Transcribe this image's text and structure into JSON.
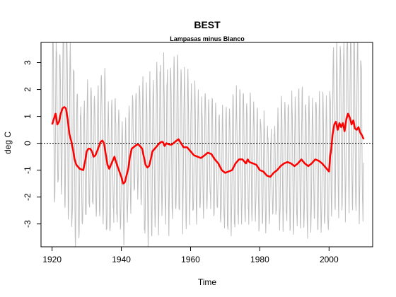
{
  "chart_data": {
    "type": "line",
    "title": "BEST",
    "subtitle": "Lampasas minus Blanco",
    "xlabel": "Time",
    "ylabel": "deg C",
    "xlim": [
      1916.8,
      2012.6
    ],
    "ylim": [
      -3.85,
      3.75
    ],
    "xticks": [
      1920,
      1940,
      1960,
      1980,
      2000
    ],
    "yticks": [
      -3,
      -2,
      -1,
      0,
      1,
      2,
      3
    ],
    "reference_line": {
      "y": 0,
      "style": "dotted",
      "color": "#000000"
    },
    "series": [
      {
        "kind": "monthly",
        "color": "#bebebe",
        "x_start": 1920.0,
        "x_step": 0.0833,
        "envelope": [
          [
            1920,
            3.4
          ],
          [
            1922,
            2.3
          ],
          [
            1924,
            3.6
          ],
          [
            1926,
            3.4
          ],
          [
            1928,
            2.2
          ],
          [
            1930,
            2.4
          ],
          [
            1932,
            2.0
          ],
          [
            1934,
            2.5
          ],
          [
            1936,
            2.6
          ],
          [
            1938,
            2.2
          ],
          [
            1940,
            2.1
          ],
          [
            1942,
            1.9
          ],
          [
            1944,
            1.6
          ],
          [
            1946,
            2.6
          ],
          [
            1948,
            2.9
          ],
          [
            1950,
            2.8
          ],
          [
            1952,
            3.0
          ],
          [
            1954,
            2.8
          ],
          [
            1956,
            2.9
          ],
          [
            1958,
            2.7
          ],
          [
            1960,
            2.4
          ],
          [
            1962,
            2.3
          ],
          [
            1964,
            2.1
          ],
          [
            1966,
            2.0
          ],
          [
            1968,
            1.9
          ],
          [
            1970,
            2.2
          ],
          [
            1972,
            2.5
          ],
          [
            1974,
            2.3
          ],
          [
            1976,
            2.4
          ],
          [
            1978,
            2.0
          ],
          [
            1980,
            2.2
          ],
          [
            1982,
            1.8
          ],
          [
            1984,
            1.5
          ],
          [
            1986,
            2.3
          ],
          [
            1988,
            2.3
          ],
          [
            1990,
            2.3
          ],
          [
            1992,
            2.4
          ],
          [
            1994,
            2.5
          ],
          [
            1996,
            2.3
          ],
          [
            1998,
            2.4
          ],
          [
            2000,
            2.5
          ],
          [
            2002,
            3.0
          ],
          [
            2004,
            3.2
          ],
          [
            2006,
            3.1
          ],
          [
            2008,
            3.3
          ],
          [
            2010,
            3.0
          ]
        ]
      },
      {
        "kind": "smoothed",
        "color": "#ff0000",
        "points": [
          [
            1920.0,
            0.7
          ],
          [
            1920.5,
            0.9
          ],
          [
            1921.0,
            1.1
          ],
          [
            1921.5,
            0.7
          ],
          [
            1922.0,
            0.8
          ],
          [
            1922.5,
            1.1
          ],
          [
            1923.0,
            1.3
          ],
          [
            1923.5,
            1.35
          ],
          [
            1924.0,
            1.3
          ],
          [
            1924.5,
            0.9
          ],
          [
            1925.0,
            0.35
          ],
          [
            1925.5,
            0.1
          ],
          [
            1926.0,
            -0.2
          ],
          [
            1926.5,
            -0.6
          ],
          [
            1927.0,
            -0.8
          ],
          [
            1928.0,
            -0.95
          ],
          [
            1929.0,
            -1.0
          ],
          [
            1929.5,
            -0.7
          ],
          [
            1930.0,
            -0.3
          ],
          [
            1930.5,
            -0.2
          ],
          [
            1931.0,
            -0.2
          ],
          [
            1931.5,
            -0.3
          ],
          [
            1932.0,
            -0.5
          ],
          [
            1932.5,
            -0.45
          ],
          [
            1933.0,
            -0.3
          ],
          [
            1934.0,
            0.05
          ],
          [
            1934.5,
            0.1
          ],
          [
            1935.0,
            0.0
          ],
          [
            1935.5,
            -0.4
          ],
          [
            1936.0,
            -0.8
          ],
          [
            1936.5,
            -0.95
          ],
          [
            1937.0,
            -0.8
          ],
          [
            1938.0,
            -0.5
          ],
          [
            1938.5,
            -0.7
          ],
          [
            1939.0,
            -0.9
          ],
          [
            1940.0,
            -1.25
          ],
          [
            1940.5,
            -1.5
          ],
          [
            1941.0,
            -1.45
          ],
          [
            1941.5,
            -1.2
          ],
          [
            1942.0,
            -0.95
          ],
          [
            1942.5,
            -0.5
          ],
          [
            1943.0,
            -0.2
          ],
          [
            1944.0,
            -0.1
          ],
          [
            1944.5,
            -0.05
          ],
          [
            1945.0,
            -0.05
          ],
          [
            1946.0,
            -0.2
          ],
          [
            1946.5,
            -0.5
          ],
          [
            1947.0,
            -0.8
          ],
          [
            1947.5,
            -0.9
          ],
          [
            1948.0,
            -0.85
          ],
          [
            1948.5,
            -0.6
          ],
          [
            1949.0,
            -0.3
          ],
          [
            1950.0,
            -0.15
          ],
          [
            1951.0,
            0.0
          ],
          [
            1951.5,
            0.05
          ],
          [
            1952.0,
            0.05
          ],
          [
            1952.5,
            -0.1
          ],
          [
            1953.0,
            0.0
          ],
          [
            1954.0,
            -0.05
          ],
          [
            1954.5,
            -0.05
          ],
          [
            1955.0,
            0.0
          ],
          [
            1956.0,
            0.1
          ],
          [
            1956.5,
            0.15
          ],
          [
            1957.0,
            0.05
          ],
          [
            1958.0,
            -0.15
          ],
          [
            1959.0,
            -0.15
          ],
          [
            1960.0,
            -0.3
          ],
          [
            1961.0,
            -0.45
          ],
          [
            1962.0,
            -0.5
          ],
          [
            1963.0,
            -0.55
          ],
          [
            1964.0,
            -0.45
          ],
          [
            1965.0,
            -0.35
          ],
          [
            1966.0,
            -0.4
          ],
          [
            1967.0,
            -0.6
          ],
          [
            1968.0,
            -0.75
          ],
          [
            1969.0,
            -1.0
          ],
          [
            1970.0,
            -1.1
          ],
          [
            1971.0,
            -1.05
          ],
          [
            1972.0,
            -1.0
          ],
          [
            1973.0,
            -0.75
          ],
          [
            1974.0,
            -0.6
          ],
          [
            1975.0,
            -0.6
          ],
          [
            1976.0,
            -0.75
          ],
          [
            1976.5,
            -0.6
          ],
          [
            1977.0,
            -0.7
          ],
          [
            1978.0,
            -0.75
          ],
          [
            1979.0,
            -0.8
          ],
          [
            1980.0,
            -1.0
          ],
          [
            1981.0,
            -1.05
          ],
          [
            1982.0,
            -1.2
          ],
          [
            1983.0,
            -1.25
          ],
          [
            1984.0,
            -1.1
          ],
          [
            1985.0,
            -1.0
          ],
          [
            1986.0,
            -0.85
          ],
          [
            1987.0,
            -0.75
          ],
          [
            1988.0,
            -0.7
          ],
          [
            1989.0,
            -0.75
          ],
          [
            1990.0,
            -0.85
          ],
          [
            1991.0,
            -0.75
          ],
          [
            1992.0,
            -0.6
          ],
          [
            1993.0,
            -0.75
          ],
          [
            1994.0,
            -0.85
          ],
          [
            1995.0,
            -0.75
          ],
          [
            1996.0,
            -0.6
          ],
          [
            1997.0,
            -0.65
          ],
          [
            1998.0,
            -0.75
          ],
          [
            1999.0,
            -0.9
          ],
          [
            2000.0,
            -1.05
          ],
          [
            2000.3,
            -0.5
          ],
          [
            2000.6,
            -0.25
          ],
          [
            2001.0,
            0.3
          ],
          [
            2001.5,
            0.7
          ],
          [
            2002.0,
            0.8
          ],
          [
            2002.5,
            0.5
          ],
          [
            2003.0,
            0.75
          ],
          [
            2003.5,
            0.6
          ],
          [
            2004.0,
            0.75
          ],
          [
            2004.5,
            0.45
          ],
          [
            2005.0,
            0.9
          ],
          [
            2005.5,
            1.1
          ],
          [
            2006.0,
            0.95
          ],
          [
            2006.5,
            0.7
          ],
          [
            2007.0,
            0.85
          ],
          [
            2007.5,
            0.55
          ],
          [
            2008.0,
            0.5
          ],
          [
            2008.5,
            0.6
          ],
          [
            2009.0,
            0.4
          ],
          [
            2009.5,
            0.3
          ],
          [
            2010.0,
            0.15
          ]
        ]
      }
    ]
  }
}
